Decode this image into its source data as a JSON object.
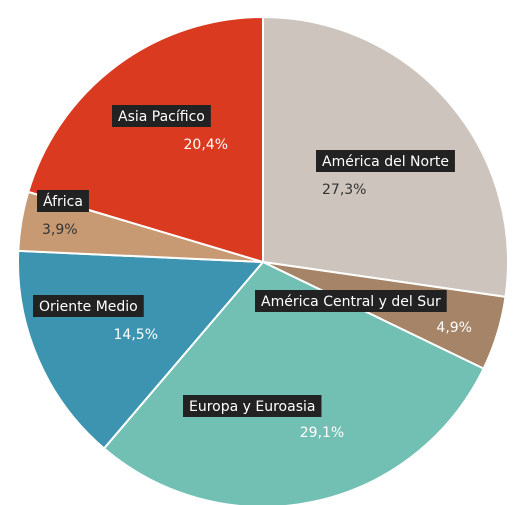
{
  "chart_data": {
    "type": "pie",
    "categories": [
      "América del Norte",
      "América Central y del Sur",
      "Europa y Euroasia",
      "Oriente Medio",
      "África",
      "Asia Pacífico"
    ],
    "values": [
      27.3,
      4.9,
      29.1,
      14.5,
      3.9,
      20.4
    ],
    "value_labels": [
      "27,3%",
      "4,9%",
      "29,1%",
      "14,5%",
      "3,9%",
      "20,4%"
    ],
    "colors": [
      "#cdc5bd",
      "#a58468",
      "#72bfb3",
      "#3c94b0",
      "#c89a74",
      "#d93a20"
    ]
  }
}
